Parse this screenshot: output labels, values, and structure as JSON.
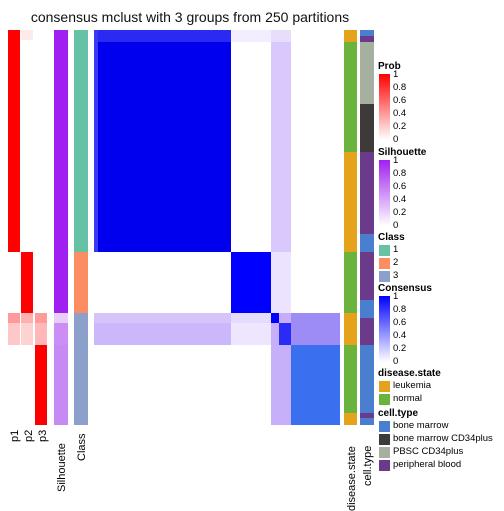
{
  "title": "consensus mclust with 3 groups from 250 partitions",
  "chart_data": {
    "type": "heatmap",
    "title": "consensus mclust with 3 groups from 250 partitions",
    "column_labels": [
      "p1",
      "p2",
      "p3",
      "Silhouette",
      "Class",
      "disease.state",
      "cell.type"
    ],
    "groups": [
      {
        "class": 1,
        "n_rows": 76,
        "consensus_block_value": 0.95
      },
      {
        "class": 2,
        "n_rows": 22,
        "consensus_block_value": 0.98
      },
      {
        "class": 3,
        "n_rows": 38,
        "consensus_block_value": 0.8
      }
    ],
    "legends": {
      "Prob": {
        "range": [
          0,
          1
        ],
        "ticks": [
          "1",
          "0.8",
          "0.6",
          "0.4",
          "0.2",
          "0"
        ],
        "colors": [
          "#ffffff",
          "#ff0000"
        ]
      },
      "Silhouette": {
        "range": [
          0,
          1
        ],
        "ticks": [
          "1",
          "0.8",
          "0.6",
          "0.4",
          "0.2",
          "0"
        ],
        "colors": [
          "#ffffff",
          "#a020f0"
        ]
      },
      "Class": {
        "items": [
          {
            "label": "1",
            "color": "#66c2a5"
          },
          {
            "label": "2",
            "color": "#fc8d62"
          },
          {
            "label": "3",
            "color": "#8da0cb"
          }
        ]
      },
      "Consensus": {
        "range": [
          0,
          1
        ],
        "ticks": [
          "1",
          "0.8",
          "0.6",
          "0.4",
          "0.2",
          "0"
        ],
        "colors": [
          "#ffffff",
          "#0000ff"
        ]
      },
      "disease.state": {
        "items": [
          {
            "label": "leukemia",
            "color": "#e5a31c"
          },
          {
            "label": "normal",
            "color": "#6ab43e"
          }
        ]
      },
      "cell.type": {
        "items": [
          {
            "label": "bone marrow",
            "color": "#4a7fd0"
          },
          {
            "label": "bone marrow CD34plus",
            "color": "#3f3a3a"
          },
          {
            "label": "PBSC CD34plus",
            "color": "#a5b0a0"
          },
          {
            "label": "peripheral blood",
            "color": "#6b3a8a"
          }
        ]
      }
    }
  }
}
